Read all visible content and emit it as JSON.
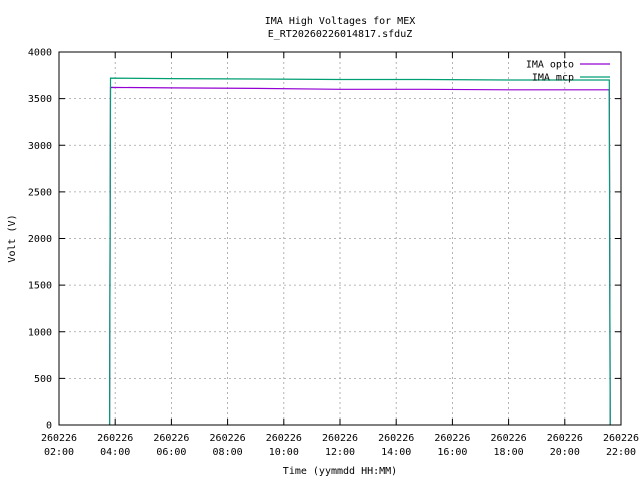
{
  "chart_data": {
    "type": "line",
    "title": "IMA High Voltages for MEX",
    "subtitle": "E_RT20260226014817.sfduZ",
    "xlabel": "Time (yymmdd HH:MM)",
    "ylabel": "Volt (V)",
    "xlim": [
      "2026-02-26 02:00",
      "2026-02-26 22:00"
    ],
    "ylim": [
      0,
      4000
    ],
    "grid": true,
    "legend_position": "top-right",
    "x_ticks": [
      {
        "date": "260226",
        "time": "02:00"
      },
      {
        "date": "260226",
        "time": "04:00"
      },
      {
        "date": "260226",
        "time": "06:00"
      },
      {
        "date": "260226",
        "time": "08:00"
      },
      {
        "date": "260226",
        "time": "10:00"
      },
      {
        "date": "260226",
        "time": "12:00"
      },
      {
        "date": "260226",
        "time": "14:00"
      },
      {
        "date": "260226",
        "time": "16:00"
      },
      {
        "date": "260226",
        "time": "18:00"
      },
      {
        "date": "260226",
        "time": "20:00"
      },
      {
        "date": "260226",
        "time": "22:00"
      }
    ],
    "y_ticks": [
      "0",
      "500",
      "1000",
      "1500",
      "2000",
      "2500",
      "3000",
      "3500",
      "4000"
    ],
    "series": [
      {
        "name": "IMA opto",
        "color": "#9400d3",
        "points": [
          [
            "2026-02-26 03:48",
            0
          ],
          [
            "2026-02-26 03:48",
            190
          ],
          [
            "2026-02-26 03:50",
            3620
          ],
          [
            "2026-02-26 06:00",
            3615
          ],
          [
            "2026-02-26 09:00",
            3610
          ],
          [
            "2026-02-26 12:00",
            3600
          ],
          [
            "2026-02-26 15:00",
            3600
          ],
          [
            "2026-02-26 18:00",
            3595
          ],
          [
            "2026-02-26 21:35",
            3595
          ],
          [
            "2026-02-26 21:37",
            0
          ]
        ]
      },
      {
        "name": "IMA mcp",
        "color": "#009e73",
        "points": [
          [
            "2026-02-26 03:48",
            0
          ],
          [
            "2026-02-26 03:50",
            3720
          ],
          [
            "2026-02-26 06:00",
            3715
          ],
          [
            "2026-02-26 09:00",
            3710
          ],
          [
            "2026-02-26 12:00",
            3705
          ],
          [
            "2026-02-26 15:00",
            3705
          ],
          [
            "2026-02-26 18:00",
            3700
          ],
          [
            "2026-02-26 21:35",
            3700
          ],
          [
            "2026-02-26 21:37",
            0
          ]
        ]
      }
    ]
  }
}
